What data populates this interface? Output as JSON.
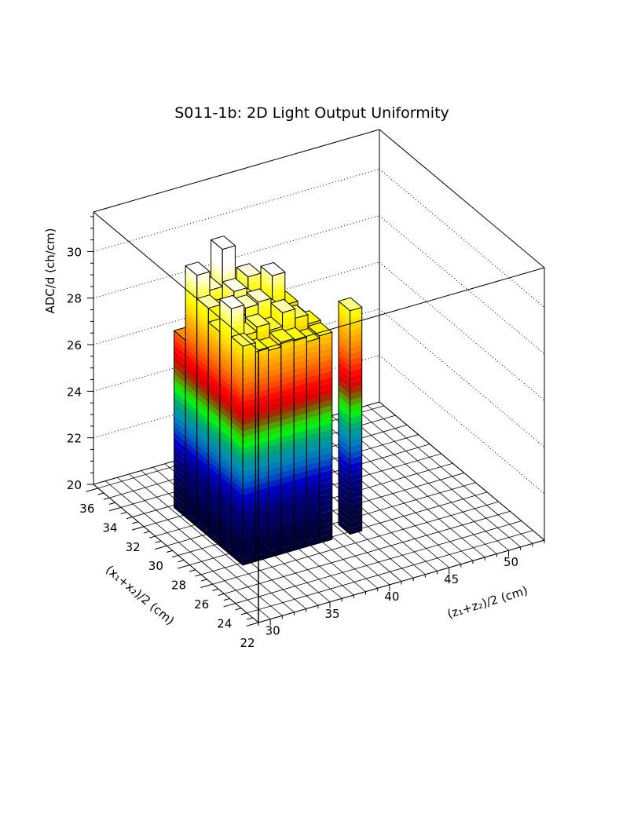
{
  "chart_data": {
    "type": "bar",
    "style": "lego3d",
    "title": "S011-1b: 2D Light Output Uniformity",
    "xlabel": "(z₁+z₂)/2 (cm)",
    "ylabel": "(x₁+x₂)/2 (cm)",
    "zlabel": "ADC/d (ch/cm)",
    "xlim": [
      29,
      53
    ],
    "ylim": [
      22,
      36.4
    ],
    "zlim": [
      20,
      31.7
    ],
    "xticks": [
      "30",
      "35",
      "40",
      "45",
      "50"
    ],
    "yticks": [
      "22",
      "24",
      "26",
      "28",
      "30",
      "32",
      "34",
      "36"
    ],
    "zticks": [
      "20",
      "22",
      "24",
      "26",
      "28",
      "30"
    ],
    "grid": true,
    "x_edges": [
      32.3,
      33.37,
      34.44,
      35.51,
      36.59,
      37.66,
      38.73,
      39.8
    ],
    "y_edges": [
      26.8,
      27.8,
      28.8,
      29.8,
      30.8,
      31.8,
      32.8
    ],
    "values": [
      [
        29.4,
        29.0,
        28.9,
        29.1,
        29.0,
        28.8,
        28.9
      ],
      [
        30.6,
        29.3,
        29.5,
        29.2,
        29.8,
        29.4,
        29.0
      ],
      [
        29.2,
        29.6,
        29.9,
        30.0,
        29.4,
        29.1,
        28.8
      ],
      [
        29.8,
        29.5,
        30.2,
        29.6,
        29.3,
        30.4,
        29.0
      ],
      [
        30.8,
        30.0,
        31.6,
        29.5,
        30.1,
        29.2,
        28.7
      ],
      [
        27.6,
        29.5,
        29.3,
        29.0,
        28.8,
        28.6,
        28.5
      ]
    ],
    "extra_bars": [
      {
        "x": [
          41.3,
          42.3
        ],
        "y": [
          26.8,
          27.8
        ],
        "value": 29.6
      }
    ],
    "palette": [
      [
        20.0,
        "#000033"
      ],
      [
        21.0,
        "#000040"
      ],
      [
        21.3,
        "#00005a"
      ],
      [
        22.0,
        "#000070"
      ],
      [
        22.5,
        "#0000a0"
      ],
      [
        22.9,
        "#0000c8"
      ],
      [
        23.3,
        "#0040c0"
      ],
      [
        23.7,
        "#0070c0"
      ],
      [
        24.1,
        "#0090b0"
      ],
      [
        24.5,
        "#00a080"
      ],
      [
        24.9,
        "#00d040"
      ],
      [
        25.2,
        "#00ff00"
      ],
      [
        25.5,
        "#40c000"
      ],
      [
        25.8,
        "#707000"
      ],
      [
        26.1,
        "#a03000"
      ],
      [
        26.4,
        "#e00000"
      ],
      [
        26.8,
        "#ff0000"
      ],
      [
        27.3,
        "#ff4000"
      ],
      [
        27.9,
        "#ff8000"
      ],
      [
        28.5,
        "#ffb000"
      ],
      [
        29.0,
        "#ffdd00"
      ],
      [
        29.5,
        "#ffff00"
      ],
      [
        30.2,
        "#ffff90"
      ],
      [
        30.8,
        "#ffffff"
      ]
    ]
  }
}
